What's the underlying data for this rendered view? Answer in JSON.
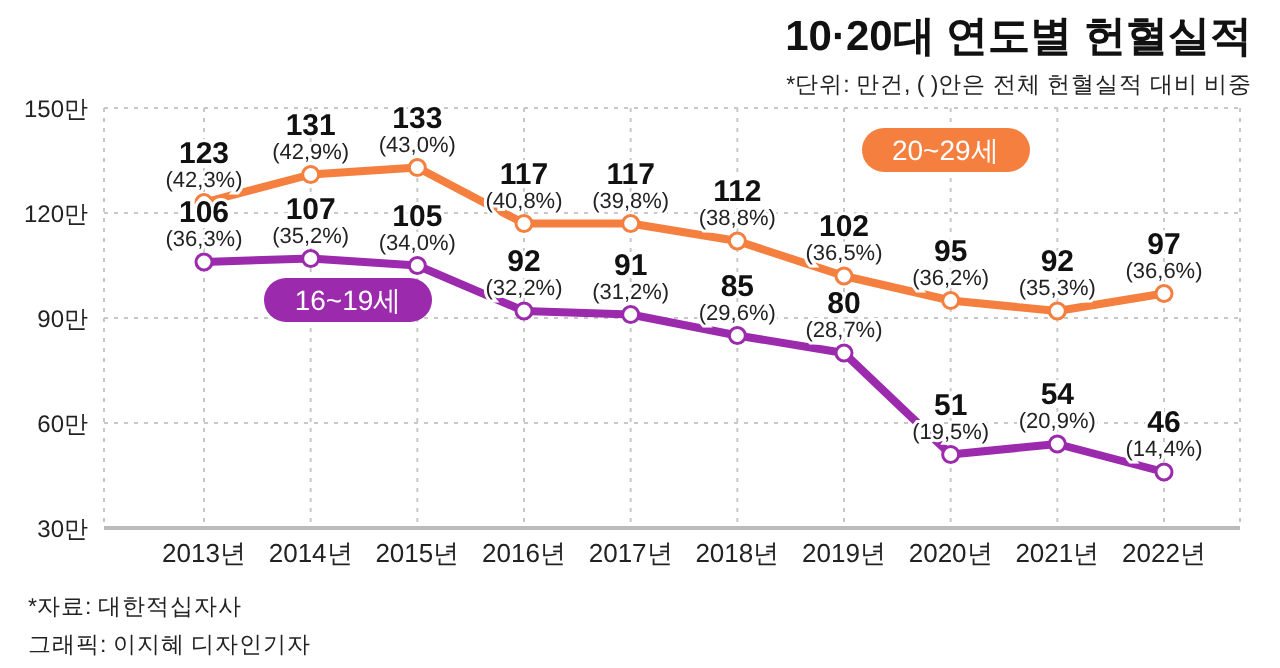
{
  "chart_data": {
    "type": "line",
    "title": "10·20대 연도별 헌혈실적",
    "subtitle": "*단위: 만건, ( )안은 전체 헌혈실적 대비 비중",
    "categories": [
      "2013년",
      "2014년",
      "2015년",
      "2016년",
      "2017년",
      "2018년",
      "2019년",
      "2020년",
      "2021년",
      "2022년"
    ],
    "series": [
      {
        "name": "20~29세",
        "color": "#f47f3f",
        "values": [
          123,
          131,
          133,
          117,
          117,
          112,
          102,
          95,
          92,
          97
        ],
        "value_labels": [
          "123 (42,3%)",
          "131 (42,9%)",
          "133 (43,0%)",
          "117 (40,8%)",
          "117 (39,8%)",
          "112 (38,8%)",
          "102 (36,5%)",
          "95 (36,2%)",
          "92 (35,3%)",
          "97 (36,6%)"
        ]
      },
      {
        "name": "16~19세",
        "color": "#9b2aad",
        "values": [
          106,
          107,
          105,
          92,
          91,
          85,
          80,
          51,
          54,
          46
        ],
        "value_labels": [
          "106 (36,3%)",
          "107 (35,2%)",
          "105 (34,0%)",
          "92 (32,2%)",
          "91 (31,2%)",
          "85 (29,6%)",
          "80 (28,7%)",
          "51 (19,5%)",
          "54 (20,9%)",
          "46 (14,4%)"
        ]
      }
    ],
    "ylim": [
      30,
      150
    ],
    "yticks": [
      {
        "value": 30,
        "label": "30만"
      },
      {
        "value": 60,
        "label": "60만"
      },
      {
        "value": 90,
        "label": "90만"
      },
      {
        "value": 120,
        "label": "120만"
      },
      {
        "value": 150,
        "label": "150만"
      }
    ],
    "grid": true,
    "legend": false,
    "marker": "circle",
    "line_style": "solid",
    "annotations": [
      "*자료: 대한적십자사",
      "그래픽: 이지혜 디자인기자"
    ]
  }
}
